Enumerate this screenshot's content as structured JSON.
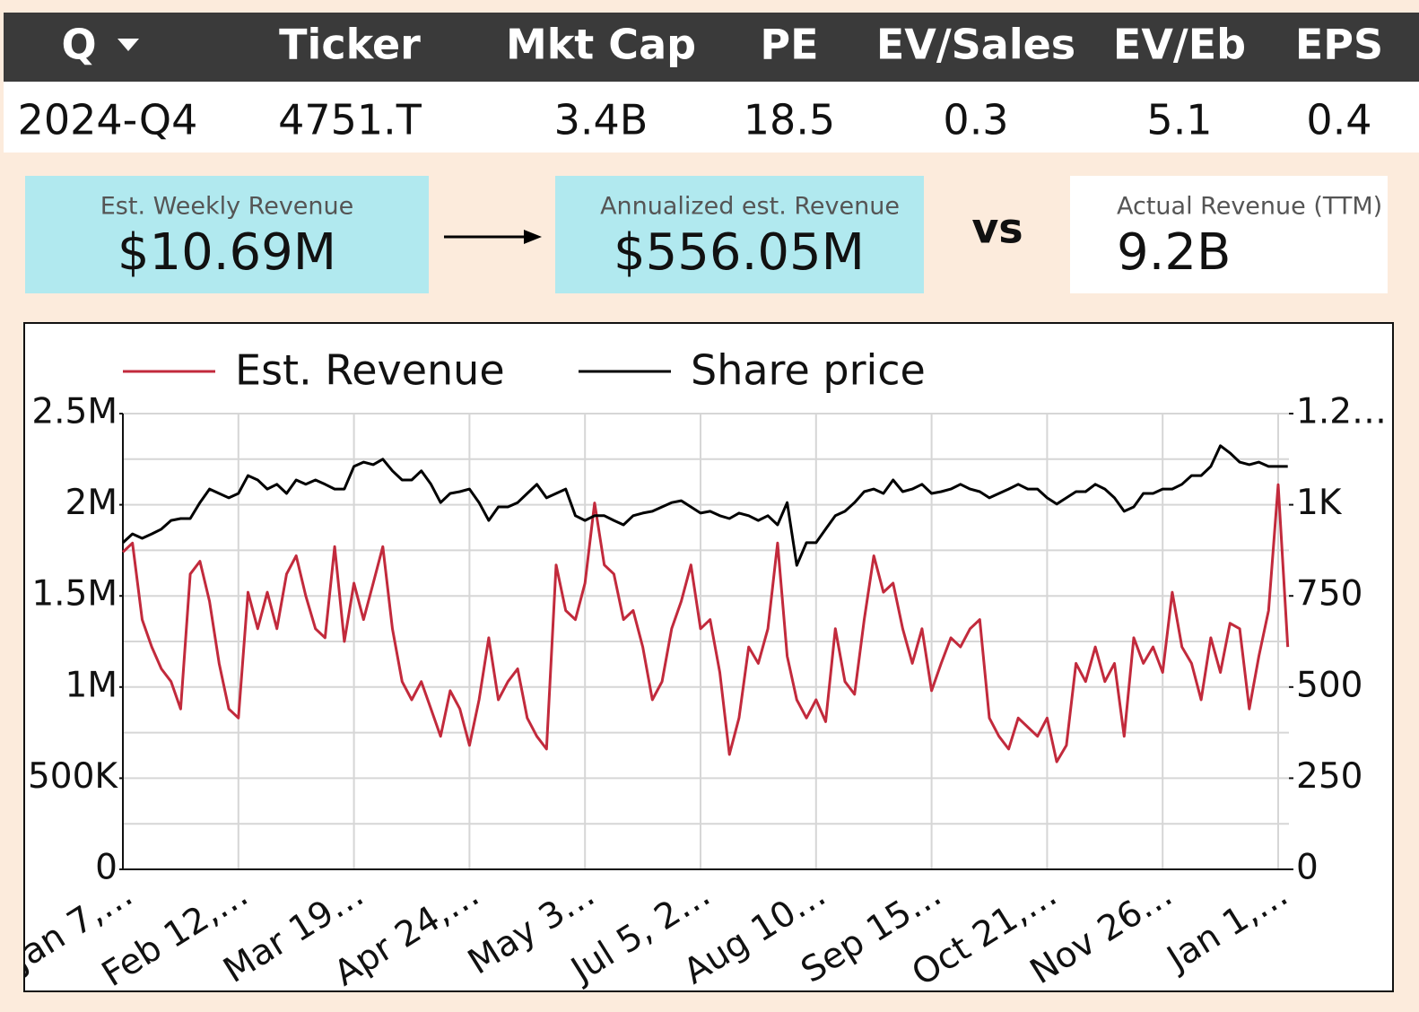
{
  "table": {
    "headers": [
      "Q",
      "Ticker",
      "Mkt Cap",
      "PE",
      "EV/Sales",
      "EV/Eb",
      "EPS"
    ],
    "rows": [
      [
        "2024-Q4",
        "4751.T",
        "3.4B",
        "18.5",
        "0.3",
        "5.1",
        "0.4"
      ]
    ]
  },
  "cards": [
    {
      "label": "Est. Weekly Revenue",
      "value": "$10.69M"
    },
    {
      "label": "Annualized est. Revenue",
      "value": "$556.05M"
    },
    {
      "label": "Actual Revenue (TTM)",
      "value": "9.2B"
    }
  ],
  "vs": "vs",
  "chart_data": {
    "type": "line",
    "categories": [
      "Jan 7,…",
      null,
      null,
      null,
      null,
      null,
      null,
      null,
      null,
      null,
      null,
      null,
      "Feb 12,…",
      null,
      null,
      null,
      null,
      null,
      null,
      null,
      null,
      null,
      null,
      null,
      "Mar 19…",
      null,
      null,
      null,
      null,
      null,
      null,
      null,
      null,
      null,
      null,
      null,
      "Apr 24,…",
      null,
      null,
      null,
      null,
      null,
      null,
      null,
      null,
      null,
      null,
      null,
      "May 3…",
      null,
      null,
      null,
      null,
      null,
      null,
      null,
      null,
      null,
      null,
      null,
      "Jul 5, 2…",
      null,
      null,
      null,
      null,
      null,
      null,
      null,
      null,
      null,
      null,
      null,
      "Aug 10…",
      null,
      null,
      null,
      null,
      null,
      null,
      null,
      null,
      null,
      null,
      null,
      "Sep 15…",
      null,
      null,
      null,
      null,
      null,
      null,
      null,
      null,
      null,
      null,
      null,
      "Oct 21,…",
      null,
      null,
      null,
      null,
      null,
      null,
      null,
      null,
      null,
      null,
      null,
      "Nov 26…",
      null,
      null,
      null,
      null,
      null,
      null,
      null,
      null,
      null,
      null,
      null,
      "Jan 1,…",
      null
    ],
    "series": [
      {
        "name": "Est. Revenue",
        "color": "#c22a3c",
        "values": [
          1740000,
          1790000,
          1370000,
          1220000,
          1100000,
          1030000,
          880000,
          1620000,
          1690000,
          1470000,
          1130000,
          880000,
          830000,
          1520000,
          1320000,
          1520000,
          1320000,
          1620000,
          1720000,
          1500000,
          1320000,
          1270000,
          1770000,
          1250000,
          1570000,
          1370000,
          1570000,
          1770000,
          1320000,
          1030000,
          930000,
          1030000,
          880000,
          730000,
          980000,
          880000,
          680000,
          930000,
          1270000,
          930000,
          1030000,
          1100000,
          830000,
          730000,
          660000,
          1670000,
          1420000,
          1370000,
          1570000,
          2010000,
          1670000,
          1620000,
          1370000,
          1420000,
          1220000,
          930000,
          1030000,
          1320000,
          1470000,
          1670000,
          1320000,
          1370000,
          1080000,
          630000,
          830000,
          1220000,
          1130000,
          1320000,
          1790000,
          1170000,
          930000,
          830000,
          930000,
          810000,
          1320000,
          1030000,
          960000,
          1370000,
          1720000,
          1520000,
          1570000,
          1320000,
          1130000,
          1320000,
          980000,
          1130000,
          1270000,
          1220000,
          1320000,
          1370000,
          830000,
          730000,
          660000,
          830000,
          780000,
          730000,
          830000,
          590000,
          680000,
          1130000,
          1030000,
          1220000,
          1030000,
          1130000,
          730000,
          1270000,
          1130000,
          1220000,
          1080000,
          1520000,
          1220000,
          1130000,
          930000,
          1270000,
          1080000,
          1350000,
          1320000,
          880000,
          1170000,
          1420000,
          2110000,
          1220000
        ]
      },
      {
        "name": "Share price",
        "color": "#000000",
        "axis": "y2",
        "values": [
          896,
          920,
          908,
          920,
          933,
          957,
          962,
          962,
          1006,
          1043,
          1031,
          1019,
          1031,
          1080,
          1068,
          1043,
          1056,
          1031,
          1068,
          1056,
          1068,
          1056,
          1043,
          1043,
          1105,
          1117,
          1110,
          1125,
          1093,
          1068,
          1068,
          1093,
          1056,
          1006,
          1031,
          1036,
          1043,
          1006,
          957,
          994,
          994,
          1006,
          1031,
          1056,
          1019,
          1031,
          1043,
          970,
          957,
          970,
          970,
          957,
          945,
          970,
          977,
          982,
          994,
          1006,
          1011,
          994,
          977,
          982,
          970,
          962,
          977,
          970,
          957,
          970,
          945,
          1006,
          834,
          896,
          896,
          933,
          970,
          982,
          1006,
          1036,
          1043,
          1031,
          1068,
          1036,
          1043,
          1056,
          1031,
          1036,
          1043,
          1056,
          1043,
          1036,
          1019,
          1031,
          1043,
          1056,
          1043,
          1043,
          1019,
          1002,
          1019,
          1036,
          1036,
          1056,
          1043,
          1019,
          982,
          994,
          1031,
          1031,
          1043,
          1043,
          1056,
          1080,
          1080,
          1105,
          1162,
          1142,
          1117,
          1110,
          1117,
          1105,
          1105,
          1105
        ]
      }
    ],
    "ylim": [
      0,
      2500000
    ],
    "yticks": [
      0,
      {
        "value": 500000,
        "label": "500K"
      },
      {
        "value": 1000000,
        "label": "1M"
      },
      {
        "value": 1500000,
        "label": "1.5M"
      },
      {
        "value": 2000000,
        "label": "2M"
      },
      {
        "value": 2500000,
        "label": "2.5M"
      }
    ],
    "yminorticks": [
      250000,
      750000,
      1250000,
      1750000,
      2250000
    ],
    "y2lim": [
      0,
      1250
    ],
    "y2ticks": [
      0,
      250,
      500,
      750,
      {
        "value": 1000,
        "label": "1K"
      },
      {
        "value": 1250,
        "label": "1.2…"
      }
    ],
    "grid": true,
    "legend": "top"
  }
}
